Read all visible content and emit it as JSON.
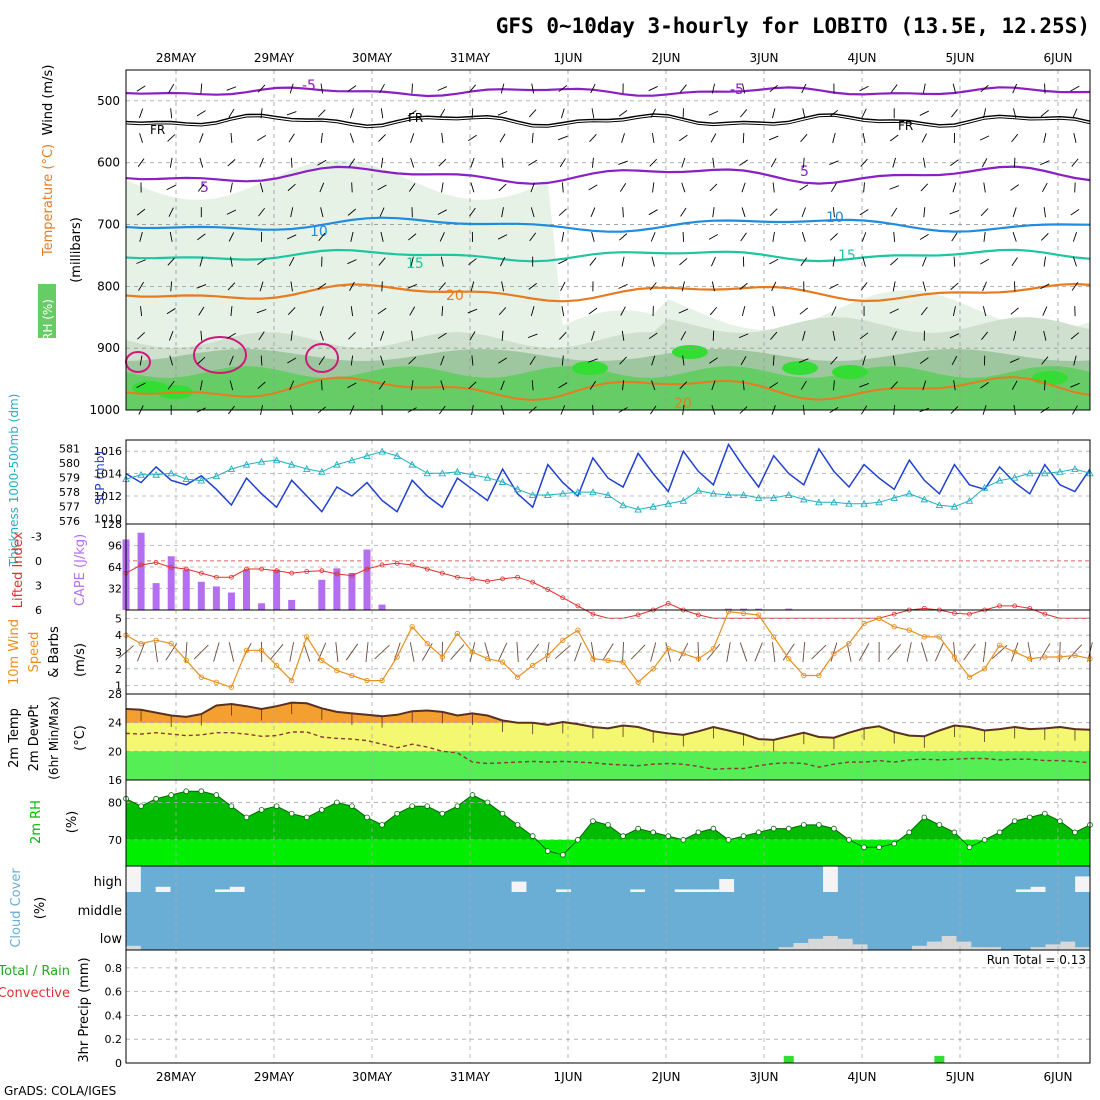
{
  "title": "GFS 0~10day 3-hourly for LOBITO (13.5E, 12.25S)",
  "credit": "GrADS: COLA/IGES",
  "dates": [
    "28MAY",
    "29MAY",
    "30MAY",
    "31MAY",
    "1JUN",
    "2JUN",
    "3JUN",
    "4JUN",
    "5JUN",
    "6JUN"
  ],
  "colors": {
    "purple": "#8a1fc4",
    "blue": "#1f8ce0",
    "teal": "#1fc4a0",
    "orange": "#e87a1f",
    "magenta": "#d0187a",
    "green": "#33dd33",
    "ltgreen": "#55ee55",
    "dkgreen": "#00bb00",
    "cloud": "#6aaed6",
    "cape": "#b36ff0",
    "li": "#e03030",
    "wind10": "#e8901f",
    "slp": "#1f3fd0",
    "thk": "#20b0c0",
    "temp_fill": "#f4a030",
    "dew_fill": "#f4f870",
    "dew_line": "#8a3a3a"
  },
  "chart_data": [
    {
      "type": "heatmap",
      "panel": "upper-air",
      "ylabel_parts": [
        "RH (%)",
        "Temperature (°C)",
        "Wind (m/s)"
      ],
      "yunits": "(millibars)",
      "yticks": [
        "500",
        "600",
        "700",
        "800",
        "900",
        "1000"
      ],
      "ylim": [
        1000,
        450
      ],
      "contour_labels": {
        "minus5": "-5",
        "fr": "FR",
        "five": "5",
        "ten": "10",
        "fifteen": "15",
        "twenty": "20",
        "twenty_b": "20"
      },
      "isotherms_mb": {
        "-5": 485,
        "FR": 530,
        "5": 620,
        "10": 700,
        "15": 750,
        "20": 810
      }
    },
    {
      "type": "line",
      "panel": "thickness-slp",
      "ylabel_left": "Thickness 1000-500mb (dm)",
      "ylabel_right": "SLP (mb)",
      "yticks_left": [
        "581",
        "580",
        "579",
        "578",
        "577",
        "576"
      ],
      "yticks_right": [
        "1016",
        "1014",
        "1012",
        "1010"
      ],
      "series": [
        {
          "name": "SLP",
          "values": [
            1014.0,
            1013.2,
            1014.6,
            1013.4,
            1013.0,
            1013.8,
            1012.6,
            1011.2,
            1013.6,
            1012.2,
            1011.0,
            1013.4,
            1012.0,
            1010.6,
            1012.8,
            1012.0,
            1013.2,
            1011.6,
            1010.6,
            1013.4,
            1012.0,
            1011.0,
            1013.6,
            1012.6,
            1011.6,
            1014.4,
            1012.2,
            1011.0,
            1014.8,
            1013.2,
            1012.0,
            1015.4,
            1013.6,
            1012.8,
            1015.8,
            1014.0,
            1012.4,
            1016.0,
            1014.2,
            1013.0,
            1016.6,
            1014.6,
            1012.8,
            1015.6,
            1014.0,
            1013.0,
            1016.2,
            1014.2,
            1012.8,
            1014.8,
            1013.6,
            1012.6,
            1015.2,
            1013.4,
            1012.2,
            1014.8,
            1013.0,
            1012.6,
            1014.6,
            1013.2,
            1012.2,
            1014.8,
            1013.0,
            1012.4,
            1014.4
          ]
        },
        {
          "name": "Thickness",
          "values": [
            578.9,
            579.2,
            579.2,
            579.3,
            578.9,
            578.8,
            579.1,
            579.6,
            579.9,
            580.1,
            580.2,
            579.9,
            579.6,
            579.4,
            579.9,
            580.2,
            580.5,
            580.8,
            580.5,
            579.9,
            579.3,
            579.3,
            579.4,
            579.2,
            579.0,
            578.7,
            578.2,
            577.8,
            577.8,
            577.9,
            578.0,
            578.0,
            577.8,
            577.1,
            576.8,
            577.0,
            577.2,
            577.4,
            578.1,
            577.9,
            577.8,
            577.8,
            577.6,
            577.6,
            577.8,
            577.5,
            577.3,
            577.3,
            577.2,
            577.2,
            577.3,
            577.6,
            577.9,
            577.5,
            577.1,
            577.0,
            577.4,
            578.3,
            578.8,
            579.0,
            579.3,
            579.3,
            579.4,
            579.6,
            579.3
          ]
        }
      ]
    },
    {
      "type": "bar",
      "panel": "cape-li",
      "ylabel_left": "Lifted Index",
      "ylabel_right": "CAPE (J/kg)",
      "yticks_cape": [
        "128",
        "96",
        "64",
        "32"
      ],
      "yticks_li": [
        "-3",
        "0",
        "3",
        "6"
      ],
      "series": [
        {
          "name": "CAPE",
          "values": [
            105,
            115,
            40,
            80,
            60,
            42,
            35,
            26,
            60,
            10,
            60,
            15,
            0,
            45,
            62,
            55,
            90,
            8,
            0,
            0,
            0,
            0,
            0,
            0,
            0,
            0,
            0,
            0,
            0,
            0,
            0,
            0,
            0,
            0,
            0,
            0,
            0,
            0,
            0,
            0,
            2,
            2,
            2,
            0,
            2,
            0,
            0,
            0,
            0,
            0,
            0,
            0,
            0,
            0,
            0,
            0,
            0,
            0,
            0,
            0,
            0,
            0,
            0,
            0,
            0
          ]
        },
        {
          "name": "Lifted Index",
          "values": [
            1.5,
            0.5,
            0.2,
            0.8,
            1.0,
            1.5,
            2.0,
            2.0,
            1.0,
            1.0,
            1.2,
            1.5,
            1.3,
            1.2,
            1.6,
            1.8,
            1.0,
            0.5,
            0.3,
            0.5,
            1.0,
            1.5,
            2.0,
            2.2,
            2.5,
            2.2,
            2.0,
            2.6,
            3.5,
            4.5,
            5.5,
            6.5,
            7.0,
            7.0,
            6.6,
            6.0,
            5.2,
            6.0,
            6.6,
            7.0,
            7.0,
            7.0,
            7.0,
            7.0,
            7.0,
            7.0,
            7.0,
            7.0,
            7.0,
            7.0,
            7.0,
            6.5,
            6.0,
            5.8,
            6.0,
            6.4,
            6.5,
            6.0,
            5.5,
            5.5,
            5.8,
            6.5,
            7.0,
            7.0,
            7.0
          ]
        }
      ]
    },
    {
      "type": "line",
      "panel": "wind10",
      "ylabel_parts": [
        "10m Wind",
        "Speed",
        "& Barbs"
      ],
      "yunits": "(m/s)",
      "yticks": [
        "5",
        "4",
        "3",
        "2",
        "1"
      ],
      "ylim": [
        0.5,
        5.5
      ],
      "series": [
        {
          "name": "10m Wind Speed",
          "values": [
            4.0,
            3.5,
            3.7,
            3.5,
            2.5,
            1.5,
            1.2,
            0.9,
            3.1,
            3.1,
            2.2,
            1.3,
            3.9,
            2.5,
            1.9,
            1.6,
            1.3,
            1.3,
            2.7,
            4.5,
            3.5,
            2.7,
            4.1,
            3.0,
            2.6,
            2.4,
            1.5,
            2.2,
            2.8,
            3.7,
            4.3,
            2.6,
            2.5,
            2.4,
            1.2,
            2.0,
            3.2,
            2.9,
            2.6,
            3.2,
            5.4,
            5.3,
            5.2,
            3.9,
            2.6,
            1.6,
            1.6,
            2.9,
            3.5,
            4.7,
            5.0,
            4.5,
            4.3,
            3.9,
            3.9,
            2.7,
            1.5,
            2.0,
            3.4,
            3.0,
            2.6,
            2.7,
            2.7,
            2.8,
            2.6
          ]
        }
      ]
    },
    {
      "type": "area",
      "panel": "temp2m",
      "ylabel_parts": [
        "2m Temp",
        "2m DewPt",
        "(6hr Min/Max)"
      ],
      "yunits": "(°C)",
      "yticks": [
        "28",
        "24",
        "20",
        "16"
      ],
      "ylim": [
        16,
        28
      ],
      "series": [
        {
          "name": "2m Temp",
          "values": [
            25.9,
            25.8,
            25.4,
            25.0,
            24.8,
            25.2,
            26.4,
            26.6,
            26.3,
            25.9,
            26.3,
            26.8,
            26.7,
            26.0,
            25.5,
            25.3,
            25.1,
            24.9,
            25.1,
            25.6,
            25.7,
            25.5,
            25.0,
            25.3,
            25.0,
            24.3,
            24.0,
            24.0,
            23.7,
            24.1,
            23.8,
            23.4,
            23.2,
            23.6,
            23.4,
            22.8,
            22.5,
            22.3,
            22.8,
            23.4,
            22.9,
            22.4,
            21.7,
            21.6,
            22.1,
            22.6,
            22.0,
            21.9,
            22.6,
            23.2,
            23.5,
            22.7,
            22.2,
            22.1,
            22.9,
            23.6,
            23.4,
            22.9,
            23.1,
            23.4,
            23.1,
            23.2,
            23.4,
            23.1,
            23.0
          ]
        },
        {
          "name": "2m DewPt",
          "values": [
            22.5,
            22.4,
            22.6,
            22.4,
            22.2,
            22.3,
            22.6,
            22.6,
            22.4,
            22.1,
            22.2,
            22.7,
            22.7,
            22.0,
            21.8,
            21.7,
            21.5,
            21.0,
            20.5,
            21.0,
            20.6,
            20.0,
            19.8,
            18.5,
            18.3,
            18.4,
            18.5,
            18.6,
            18.5,
            18.6,
            18.5,
            18.4,
            18.2,
            18.1,
            18.0,
            18.2,
            18.3,
            18.2,
            17.9,
            17.5,
            17.6,
            17.6,
            18.0,
            18.3,
            18.4,
            18.3,
            17.8,
            18.2,
            18.5,
            18.5,
            18.7,
            18.5,
            18.8,
            18.9,
            18.8,
            18.9,
            19.0,
            19.0,
            18.8,
            18.9,
            18.9,
            18.7,
            18.7,
            18.6,
            18.4
          ]
        }
      ]
    },
    {
      "type": "area",
      "panel": "rh2m",
      "ylabel": "2m RH",
      "yunits": "(%)",
      "yticks": [
        "80",
        "70"
      ],
      "ylim": [
        63,
        86
      ],
      "series": [
        {
          "name": "2m RH",
          "values": [
            81,
            79,
            81,
            82,
            83,
            83,
            82,
            79,
            76,
            78,
            79,
            77,
            76,
            78,
            80,
            79,
            76,
            74,
            77,
            79,
            79,
            77,
            79,
            82,
            80,
            77,
            74,
            71,
            67,
            66,
            70,
            75,
            74,
            71,
            73,
            72,
            71,
            70,
            72,
            73,
            70,
            71,
            72,
            73,
            73,
            74,
            74,
            73,
            70,
            68,
            68,
            69,
            72,
            76,
            74,
            72,
            68,
            70,
            72,
            75,
            76,
            77,
            75,
            72,
            74
          ]
        }
      ]
    },
    {
      "type": "bar",
      "panel": "cloud",
      "ylabel": "Cloud Cover",
      "yunits": "(%)",
      "level_labels": [
        "high",
        "middle",
        "low"
      ],
      "series": [
        {
          "name": "high",
          "values": [
            100,
            0,
            20,
            0,
            0,
            0,
            10,
            20,
            0,
            0,
            0,
            0,
            0,
            0,
            0,
            0,
            0,
            0,
            0,
            0,
            0,
            0,
            0,
            0,
            0,
            0,
            40,
            0,
            0,
            10,
            0,
            0,
            0,
            0,
            10,
            0,
            0,
            10,
            10,
            10,
            50,
            0,
            0,
            0,
            0,
            0,
            0,
            100,
            0,
            0,
            0,
            0,
            0,
            0,
            0,
            0,
            0,
            0,
            0,
            0,
            10,
            20,
            0,
            0,
            60
          ]
        },
        {
          "name": "middle",
          "values": [
            0,
            0,
            0,
            0,
            0,
            0,
            0,
            0,
            0,
            0,
            0,
            0,
            0,
            0,
            0,
            0,
            0,
            0,
            0,
            0,
            0,
            0,
            0,
            0,
            0,
            0,
            0,
            0,
            0,
            0,
            0,
            0,
            0,
            0,
            0,
            0,
            0,
            0,
            0,
            0,
            0,
            0,
            0,
            0,
            0,
            0,
            0,
            0,
            0,
            0,
            0,
            0,
            0,
            0,
            0,
            0,
            0,
            0,
            0,
            0,
            0,
            0,
            0,
            0,
            0
          ]
        },
        {
          "name": "low",
          "values": [
            15,
            0,
            0,
            0,
            0,
            0,
            0,
            0,
            0,
            0,
            0,
            0,
            0,
            0,
            0,
            0,
            0,
            0,
            0,
            0,
            0,
            0,
            0,
            0,
            0,
            0,
            0,
            0,
            0,
            0,
            0,
            0,
            0,
            0,
            0,
            0,
            0,
            0,
            0,
            0,
            0,
            0,
            0,
            0,
            10,
            25,
            40,
            50,
            40,
            20,
            0,
            0,
            0,
            15,
            30,
            50,
            30,
            10,
            10,
            0,
            0,
            10,
            20,
            30,
            10
          ]
        }
      ]
    },
    {
      "type": "bar",
      "panel": "precip",
      "ylabel": "3hr Precip (mm)",
      "ylabel_left": "Total / Rain",
      "ylabel_left2": "Convective",
      "run_total": "Run Total = 0.13",
      "yticks": [
        "0.8",
        "0.6",
        "0.4",
        "0.2",
        "0"
      ],
      "ylim": [
        0,
        0.95
      ],
      "series": [
        {
          "name": "Total",
          "values": [
            0,
            0,
            0,
            0,
            0,
            0,
            0,
            0,
            0,
            0,
            0,
            0,
            0,
            0,
            0,
            0,
            0,
            0,
            0,
            0,
            0,
            0,
            0,
            0,
            0,
            0,
            0,
            0,
            0,
            0,
            0,
            0,
            0,
            0,
            0,
            0,
            0,
            0,
            0,
            0,
            0,
            0,
            0,
            0,
            0.06,
            0,
            0,
            0,
            0,
            0,
            0,
            0,
            0,
            0,
            0.06,
            0,
            0,
            0,
            0,
            0,
            0,
            0,
            0,
            0,
            0
          ]
        }
      ]
    }
  ]
}
